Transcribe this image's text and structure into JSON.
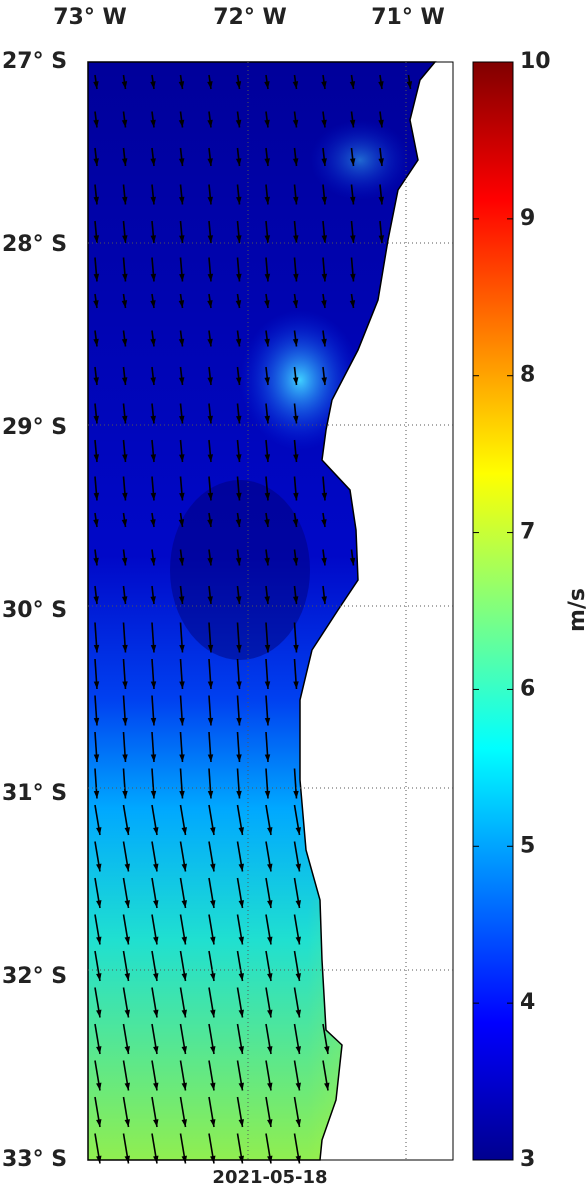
{
  "map": {
    "lon_labels": [
      "73° W",
      "72° W",
      "71° W"
    ],
    "lat_labels": [
      "27° S",
      "28° S",
      "29° S",
      "30° S",
      "31° S",
      "32° S",
      "33° S"
    ],
    "date": "2021-05-18",
    "colorbar": {
      "label": "m/s",
      "lim": [
        3,
        10
      ],
      "ticks": [
        3,
        4,
        5,
        6,
        7,
        8,
        9,
        10
      ],
      "colormap": "jet"
    }
  }
}
